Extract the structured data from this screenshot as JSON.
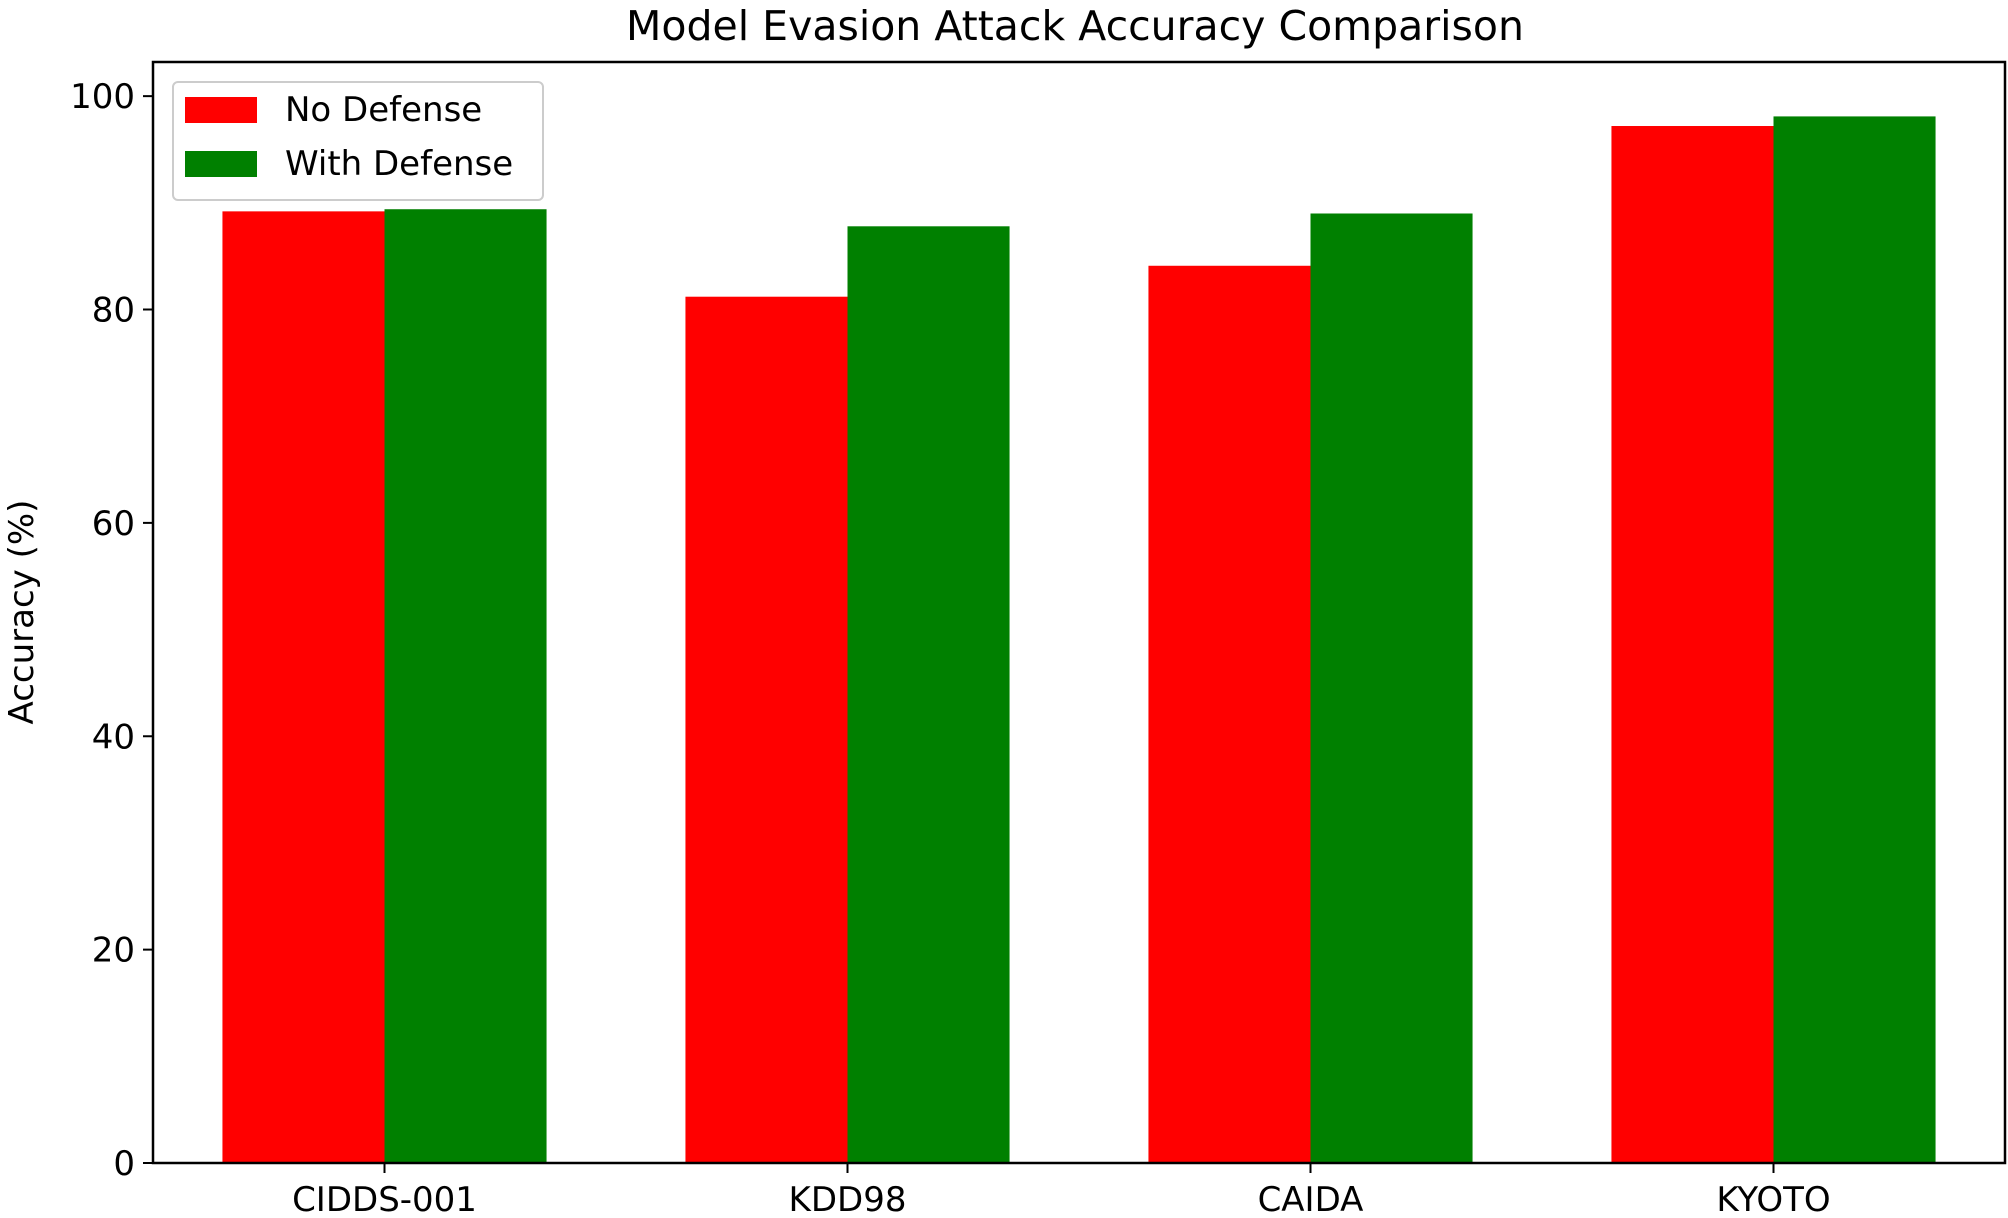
{
  "chart_data": {
    "type": "bar",
    "title": "Model Evasion Attack Accuracy Comparison",
    "xlabel": "",
    "ylabel": "Accuracy (%)",
    "categories": [
      "CIDDS-001",
      "KDD98",
      "CAIDA",
      "KYOTO"
    ],
    "series": [
      {
        "name": "No Defense",
        "color": "#ff0000",
        "values": [
          89.2,
          81.2,
          84.1,
          97.2
        ]
      },
      {
        "name": "With Defense",
        "color": "#008000",
        "values": [
          89.4,
          87.8,
          89.0,
          98.1
        ]
      }
    ],
    "ylim": [
      0,
      103.2
    ],
    "yticks": [
      0,
      20,
      40,
      60,
      80,
      100
    ],
    "grid": false,
    "legend_position": "top-left"
  }
}
